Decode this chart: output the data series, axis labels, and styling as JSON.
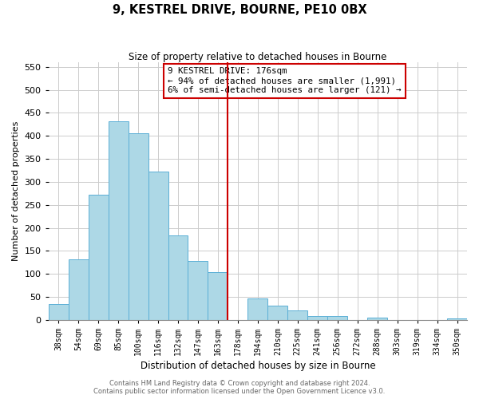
{
  "title": "9, KESTREL DRIVE, BOURNE, PE10 0BX",
  "subtitle": "Size of property relative to detached houses in Bourne",
  "xlabel": "Distribution of detached houses by size in Bourne",
  "ylabel": "Number of detached properties",
  "bar_labels": [
    "38sqm",
    "54sqm",
    "69sqm",
    "85sqm",
    "100sqm",
    "116sqm",
    "132sqm",
    "147sqm",
    "163sqm",
    "178sqm",
    "194sqm",
    "210sqm",
    "225sqm",
    "241sqm",
    "256sqm",
    "272sqm",
    "288sqm",
    "303sqm",
    "319sqm",
    "334sqm",
    "350sqm"
  ],
  "bar_values": [
    35,
    132,
    272,
    432,
    405,
    322,
    184,
    128,
    103,
    0,
    46,
    30,
    20,
    8,
    8,
    0,
    5,
    0,
    0,
    0,
    3
  ],
  "bar_color": "#add8e6",
  "bar_edge_color": "#5bafd6",
  "vline_color": "#cc0000",
  "annotation_text": "9 KESTREL DRIVE: 176sqm\n← 94% of detached houses are smaller (1,991)\n6% of semi-detached houses are larger (121) →",
  "annotation_box_color": "#cc0000",
  "ylim": [
    0,
    560
  ],
  "yticks": [
    0,
    50,
    100,
    150,
    200,
    250,
    300,
    350,
    400,
    450,
    500,
    550
  ],
  "footer_line1": "Contains HM Land Registry data © Crown copyright and database right 2024.",
  "footer_line2": "Contains public sector information licensed under the Open Government Licence v3.0.",
  "bg_color": "#ffffff",
  "grid_color": "#cccccc",
  "title_fontsize": 10.5,
  "subtitle_fontsize": 8.5
}
